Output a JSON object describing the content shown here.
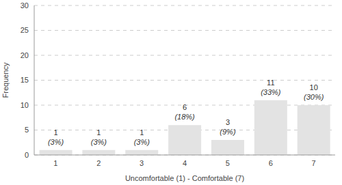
{
  "chart_data": {
    "type": "bar",
    "categories": [
      "1",
      "2",
      "3",
      "4",
      "5",
      "6",
      "7"
    ],
    "values": [
      1,
      1,
      1,
      6,
      3,
      11,
      10
    ],
    "percent_labels": [
      "(3%)",
      "(3%)",
      "(3%)",
      "(18%)",
      "(9%)",
      "(33%)",
      "(30%)"
    ],
    "x_label": "Uncomfortable (1) - Comfortable (7)",
    "y_label": "Frequency",
    "color": "#e3e3e3",
    "ylim": [
      0,
      30
    ],
    "yticks": [
      0,
      5,
      10,
      15,
      20,
      25,
      30
    ],
    "grid": true,
    "data_labels": true
  }
}
